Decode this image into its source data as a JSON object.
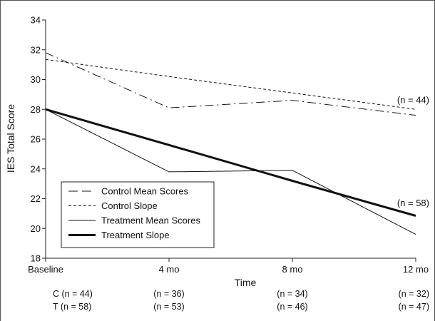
{
  "chart_data": {
    "type": "line",
    "title": "",
    "xlabel": "Time",
    "ylabel": "IES Total Score",
    "categories": [
      "Baseline",
      "4 mo",
      "8 mo",
      "12 mo"
    ],
    "x": [
      0,
      4,
      8,
      12
    ],
    "ylim": [
      18,
      34
    ],
    "yticks": [
      18,
      20,
      22,
      24,
      26,
      28,
      30,
      32,
      34
    ],
    "grid": false,
    "legend_position": "bottom-left",
    "series": [
      {
        "name": "Control Mean Scores",
        "style": "dash-dot",
        "stroke_width": 1,
        "values": [
          31.8,
          28.1,
          28.6,
          27.6
        ]
      },
      {
        "name": "Control Slope",
        "style": "dotted",
        "stroke_width": 1,
        "values": [
          31.35,
          30.2,
          29.1,
          28.0
        ]
      },
      {
        "name": "Treatment Mean Scores",
        "style": "solid",
        "stroke_width": 1,
        "values": [
          28.0,
          23.8,
          23.9,
          19.6
        ]
      },
      {
        "name": "Treatment Slope",
        "style": "solid",
        "stroke_width": 3,
        "values": [
          28.0,
          25.6,
          23.2,
          20.85
        ]
      }
    ],
    "annotations": [
      {
        "text": "(n = 44)",
        "x": 12,
        "y": 28.6
      },
      {
        "text": "(n = 58)",
        "x": 12,
        "y": 21.7
      }
    ],
    "sample_sizes": [
      {
        "label": "C (n = 44)",
        "values": [
          "(n = 36)",
          "(n = 34)",
          "(n = 32)"
        ]
      },
      {
        "label": "T (n = 58)",
        "values": [
          "(n = 53)",
          "(n = 46)",
          "(n = 47)"
        ]
      }
    ]
  }
}
